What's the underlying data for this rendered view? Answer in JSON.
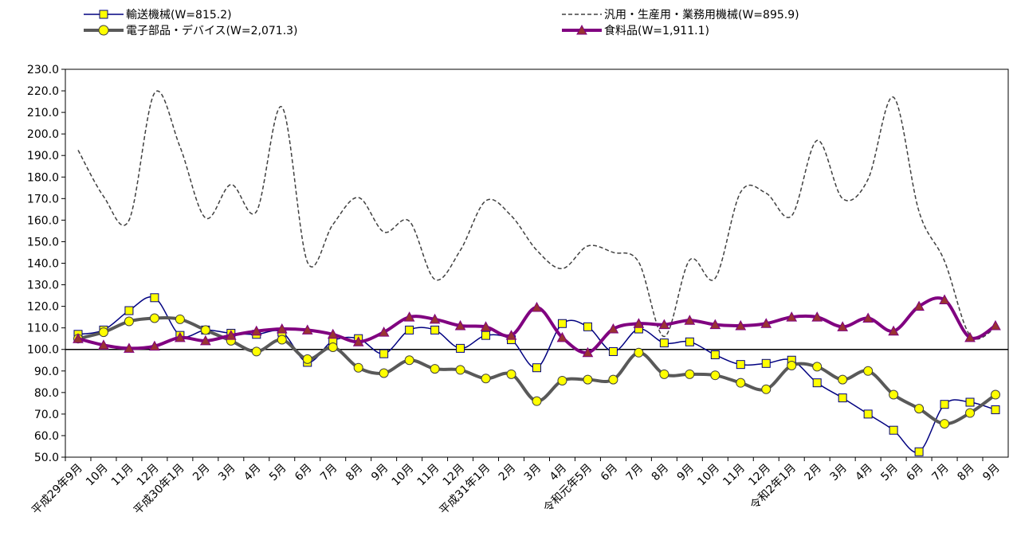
{
  "chart_data": {
    "type": "line",
    "ylim": [
      50,
      230
    ],
    "yticks": [
      "230.0",
      "220.0",
      "210.0",
      "200.0",
      "190.0",
      "180.0",
      "170.0",
      "160.0",
      "150.0",
      "140.0",
      "130.0",
      "120.0",
      "110.0",
      "100.0",
      "90.0",
      "80.0",
      "70.0",
      "60.0",
      "50.0"
    ],
    "baseline": 100,
    "categories": [
      "平成29年9月",
      "10月",
      "11月",
      "12月",
      "平成30年1月",
      "2月",
      "3月",
      "4月",
      "5月",
      "6月",
      "7月",
      "8月",
      "9月",
      "10月",
      "11月",
      "12月",
      "平成31年1月",
      "2月",
      "3月",
      "4月",
      "令和元年5月",
      "6月",
      "7月",
      "8月",
      "9月",
      "10月",
      "11月",
      "12月",
      "令和2年1月",
      "2月",
      "3月",
      "4月",
      "5月",
      "6月",
      "7月",
      "8月",
      "9月"
    ],
    "series": [
      {
        "name": "輸送機械(W=815.2)",
        "color": "#000080",
        "marker": "square",
        "marker_fill": "#ffff00",
        "values": [
          107.0,
          109.0,
          118.0,
          124.0,
          106.5,
          109.0,
          107.5,
          107.0,
          108.0,
          94.0,
          104.0,
          105.0,
          98.0,
          109.0,
          109.0,
          100.5,
          106.5,
          104.5,
          91.5,
          112.0,
          110.5,
          99.0,
          109.5,
          103.0,
          103.5,
          97.5,
          93.0,
          93.5,
          95.0,
          84.5,
          77.5,
          70.0,
          62.5,
          52.5,
          74.5,
          75.5,
          72.0
        ]
      },
      {
        "name": "汎用・生産用・業務用機械(W=895.9)",
        "color": "#404040",
        "marker": "none",
        "dashed": true,
        "values": [
          192.5,
          171.0,
          160.0,
          219.0,
          194.0,
          161.0,
          176.5,
          164.0,
          212.5,
          140.5,
          158.0,
          170.5,
          154.5,
          159.5,
          132.5,
          146.0,
          169.0,
          162.0,
          146.0,
          137.5,
          148.0,
          145.0,
          140.5,
          106.0,
          141.5,
          133.0,
          173.0,
          172.5,
          162.0,
          197.0,
          170.0,
          179.0,
          217.0,
          164.0,
          141.0,
          106.5,
          110.0
        ]
      },
      {
        "name": "電子部品・デバイス(W=2,071.3)",
        "color": "#595959",
        "marker": "circle",
        "marker_fill": "#ffff00",
        "values": [
          105.0,
          108.0,
          113.0,
          114.5,
          114.0,
          109.0,
          104.0,
          99.0,
          104.5,
          95.5,
          101.0,
          91.5,
          89.0,
          95.0,
          91.0,
          90.5,
          86.5,
          88.5,
          76.0,
          85.5,
          86.0,
          86.0,
          98.5,
          88.5,
          88.5,
          88.0,
          84.5,
          81.5,
          92.5,
          92.0,
          86.0,
          90.0,
          79.0,
          72.5,
          65.5,
          70.5,
          79.0
        ]
      },
      {
        "name": "食料品(W=1,911.1)",
        "color": "#800080",
        "marker": "triangle",
        "marker_fill": "#993333",
        "values": [
          105.0,
          102.0,
          100.5,
          101.5,
          105.5,
          104.0,
          106.5,
          108.5,
          109.5,
          109.0,
          107.0,
          103.5,
          108.0,
          115.0,
          114.0,
          111.0,
          110.5,
          106.5,
          119.5,
          105.5,
          98.5,
          109.5,
          112.0,
          111.5,
          113.5,
          111.5,
          111.0,
          112.0,
          115.0,
          115.0,
          110.5,
          114.5,
          108.5,
          120.0,
          123.0,
          105.5,
          111.0
        ]
      }
    ]
  }
}
